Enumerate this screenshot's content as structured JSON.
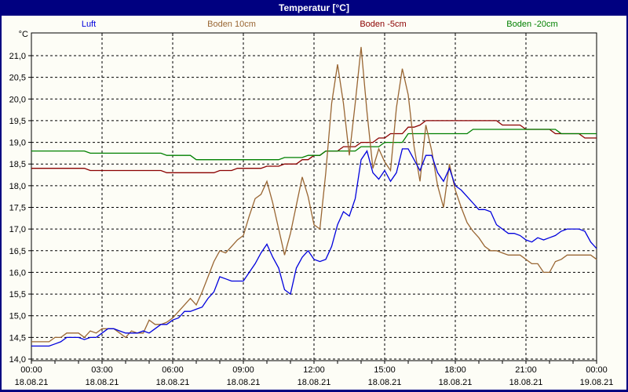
{
  "window": {
    "title": "Temperatur [°C]",
    "title_bar_color": "#000080",
    "background_color": "#fdfdf6"
  },
  "legend": [
    {
      "label": "Luft",
      "color": "#0000dd"
    },
    {
      "label": "Boden 10cm",
      "color": "#996633"
    },
    {
      "label": "Boden -5cm",
      "color": "#8b0000"
    },
    {
      "label": "Boden -20cm",
      "color": "#008000"
    }
  ],
  "axes": {
    "unit_label": "°C",
    "y_tick_labels": [
      "14,0",
      "14,5",
      "15,0",
      "15,5",
      "16,0",
      "16,5",
      "17,0",
      "17,5",
      "18,0",
      "18,5",
      "19,0",
      "19,5",
      "20,0",
      "20,5",
      "21,0"
    ],
    "x_ticks": [
      {
        "time": "00:00",
        "date": "18.08.21"
      },
      {
        "time": "03:00",
        "date": "18.08.21"
      },
      {
        "time": "06:00",
        "date": "18.08.21"
      },
      {
        "time": "09:00",
        "date": "18.08.21"
      },
      {
        "time": "12:00",
        "date": "18.08.21"
      },
      {
        "time": "15:00",
        "date": "18.08.21"
      },
      {
        "time": "18:00",
        "date": "18.08.21"
      },
      {
        "time": "21:00",
        "date": "18.08.21"
      },
      {
        "time": "00:00",
        "date": "19.08.21"
      }
    ]
  },
  "chart_data": {
    "type": "line",
    "title": "Temperatur [°C]",
    "x_unit": "time of day, 15-minute sampling from 00:00 18.08.21 to 00:00 19.08.21",
    "x_minutes_step": 15,
    "ylim": [
      14.0,
      21.5
    ],
    "y_major_step": 0.5,
    "grid": "dashed black, horizontal every 0.5 °C, vertical every 3 h",
    "legend_position": "top row, outside plot",
    "series": [
      {
        "name": "Luft",
        "color": "#0000dd",
        "values": [
          14.3,
          14.3,
          14.3,
          14.3,
          14.35,
          14.4,
          14.5,
          14.5,
          14.5,
          14.45,
          14.5,
          14.5,
          14.6,
          14.7,
          14.7,
          14.65,
          14.6,
          14.6,
          14.6,
          14.65,
          14.6,
          14.7,
          14.8,
          14.8,
          14.9,
          14.95,
          15.1,
          15.1,
          15.15,
          15.2,
          15.4,
          15.55,
          15.9,
          15.85,
          15.8,
          15.8,
          15.8,
          16.0,
          16.2,
          16.45,
          16.65,
          16.35,
          16.1,
          15.6,
          15.5,
          16.1,
          16.35,
          16.5,
          16.3,
          16.25,
          16.3,
          16.6,
          17.1,
          17.4,
          17.3,
          17.7,
          18.6,
          18.8,
          18.3,
          18.15,
          18.35,
          18.1,
          18.3,
          18.85,
          18.85,
          18.6,
          18.35,
          18.7,
          18.7,
          18.3,
          18.1,
          18.4,
          18.0,
          17.9,
          17.75,
          17.6,
          17.45,
          17.45,
          17.4,
          17.1,
          17.0,
          16.9,
          16.9,
          16.85,
          16.75,
          16.7,
          16.8,
          16.75,
          16.8,
          16.85,
          16.95,
          17.0,
          17.0,
          17.0,
          16.95,
          16.7,
          16.55
        ]
      },
      {
        "name": "Boden 10cm",
        "color": "#996633",
        "values": [
          14.4,
          14.4,
          14.4,
          14.4,
          14.5,
          14.5,
          14.6,
          14.6,
          14.6,
          14.5,
          14.65,
          14.6,
          14.7,
          14.7,
          14.7,
          14.6,
          14.5,
          14.65,
          14.6,
          14.6,
          14.9,
          14.8,
          14.8,
          14.85,
          14.95,
          15.1,
          15.25,
          15.4,
          15.25,
          15.55,
          15.9,
          16.25,
          16.5,
          16.45,
          16.6,
          16.75,
          16.85,
          17.3,
          17.7,
          17.8,
          18.1,
          17.6,
          17.0,
          16.4,
          16.9,
          17.55,
          18.2,
          17.75,
          17.1,
          17.0,
          18.3,
          19.9,
          20.8,
          19.9,
          18.7,
          19.9,
          21.2,
          19.7,
          18.4,
          18.85,
          18.55,
          18.35,
          19.8,
          20.7,
          20.1,
          18.9,
          18.1,
          19.4,
          18.8,
          18.0,
          17.5,
          18.5,
          17.9,
          17.5,
          17.15,
          16.95,
          16.8,
          16.6,
          16.5,
          16.5,
          16.45,
          16.4,
          16.4,
          16.4,
          16.3,
          16.2,
          16.2,
          16.0,
          16.0,
          16.25,
          16.3,
          16.4,
          16.4,
          16.4,
          16.4,
          16.4,
          16.3
        ]
      },
      {
        "name": "Boden -5cm",
        "color": "#8b0000",
        "values": [
          18.4,
          18.4,
          18.4,
          18.4,
          18.4,
          18.4,
          18.4,
          18.4,
          18.4,
          18.4,
          18.35,
          18.35,
          18.35,
          18.35,
          18.35,
          18.35,
          18.35,
          18.35,
          18.35,
          18.35,
          18.35,
          18.35,
          18.35,
          18.3,
          18.3,
          18.3,
          18.3,
          18.3,
          18.3,
          18.3,
          18.3,
          18.3,
          18.35,
          18.35,
          18.35,
          18.4,
          18.4,
          18.4,
          18.4,
          18.4,
          18.45,
          18.45,
          18.45,
          18.5,
          18.5,
          18.5,
          18.6,
          18.6,
          18.7,
          18.7,
          18.8,
          18.8,
          18.8,
          18.9,
          18.9,
          18.9,
          19.0,
          19.0,
          19.0,
          19.1,
          19.1,
          19.2,
          19.2,
          19.2,
          19.35,
          19.35,
          19.4,
          19.5,
          19.5,
          19.5,
          19.5,
          19.5,
          19.5,
          19.5,
          19.5,
          19.5,
          19.5,
          19.5,
          19.5,
          19.5,
          19.4,
          19.4,
          19.4,
          19.4,
          19.3,
          19.3,
          19.3,
          19.3,
          19.3,
          19.2,
          19.2,
          19.2,
          19.2,
          19.2,
          19.1,
          19.1,
          19.1
        ]
      },
      {
        "name": "Boden -20cm",
        "color": "#008000",
        "values": [
          18.8,
          18.8,
          18.8,
          18.8,
          18.8,
          18.8,
          18.8,
          18.8,
          18.8,
          18.8,
          18.75,
          18.75,
          18.75,
          18.75,
          18.75,
          18.75,
          18.75,
          18.75,
          18.75,
          18.75,
          18.75,
          18.75,
          18.75,
          18.7,
          18.7,
          18.7,
          18.7,
          18.7,
          18.6,
          18.6,
          18.6,
          18.6,
          18.6,
          18.6,
          18.6,
          18.6,
          18.6,
          18.6,
          18.6,
          18.6,
          18.6,
          18.6,
          18.6,
          18.65,
          18.65,
          18.65,
          18.65,
          18.7,
          18.7,
          18.7,
          18.8,
          18.8,
          18.8,
          18.8,
          18.8,
          18.8,
          18.9,
          18.9,
          18.9,
          18.9,
          19.0,
          19.0,
          19.0,
          19.0,
          19.2,
          19.2,
          19.2,
          19.2,
          19.2,
          19.2,
          19.2,
          19.2,
          19.2,
          19.2,
          19.2,
          19.3,
          19.3,
          19.3,
          19.3,
          19.3,
          19.3,
          19.3,
          19.3,
          19.3,
          19.3,
          19.3,
          19.3,
          19.3,
          19.3,
          19.3,
          19.2,
          19.2,
          19.2,
          19.2,
          19.2,
          19.2,
          19.2
        ]
      }
    ]
  }
}
